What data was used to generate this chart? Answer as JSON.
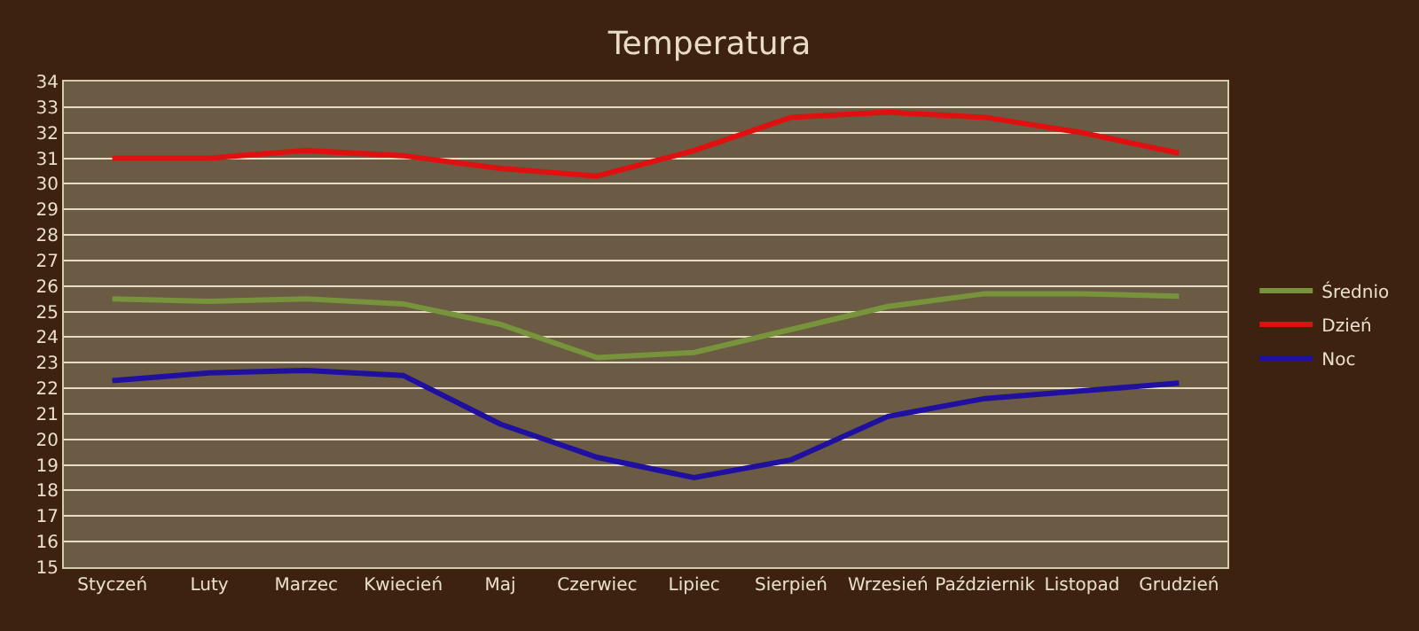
{
  "chart_data": {
    "type": "line",
    "title": "Temperatura",
    "categories": [
      "Styczeń",
      "Luty",
      "Marzec",
      "Kwiecień",
      "Maj",
      "Czerwiec",
      "Lipiec",
      "Sierpień",
      "Wrzesień",
      "Październik",
      "Listopad",
      "Grudzień"
    ],
    "series": [
      {
        "name": "Średnio",
        "color": "#77933c",
        "values": [
          25.5,
          25.4,
          25.5,
          25.3,
          24.5,
          23.2,
          23.4,
          24.3,
          25.2,
          25.7,
          25.7,
          25.6
        ]
      },
      {
        "name": "Dzień",
        "color": "#e01010",
        "values": [
          31.0,
          31.0,
          31.3,
          31.1,
          30.6,
          30.3,
          31.3,
          32.6,
          32.8,
          32.6,
          32.0,
          31.2
        ]
      },
      {
        "name": "Noc",
        "color": "#2010a0",
        "values": [
          22.3,
          22.6,
          22.7,
          22.5,
          20.6,
          19.3,
          18.5,
          19.2,
          20.9,
          21.6,
          21.9,
          22.2
        ]
      }
    ],
    "ylim": [
      15,
      34
    ],
    "yticks": [
      15,
      16,
      17,
      18,
      19,
      20,
      21,
      22,
      23,
      24,
      25,
      26,
      27,
      28,
      29,
      30,
      31,
      32,
      33,
      34
    ],
    "grid": "y",
    "legend": "right",
    "marker": "none",
    "line_style": "solid"
  }
}
